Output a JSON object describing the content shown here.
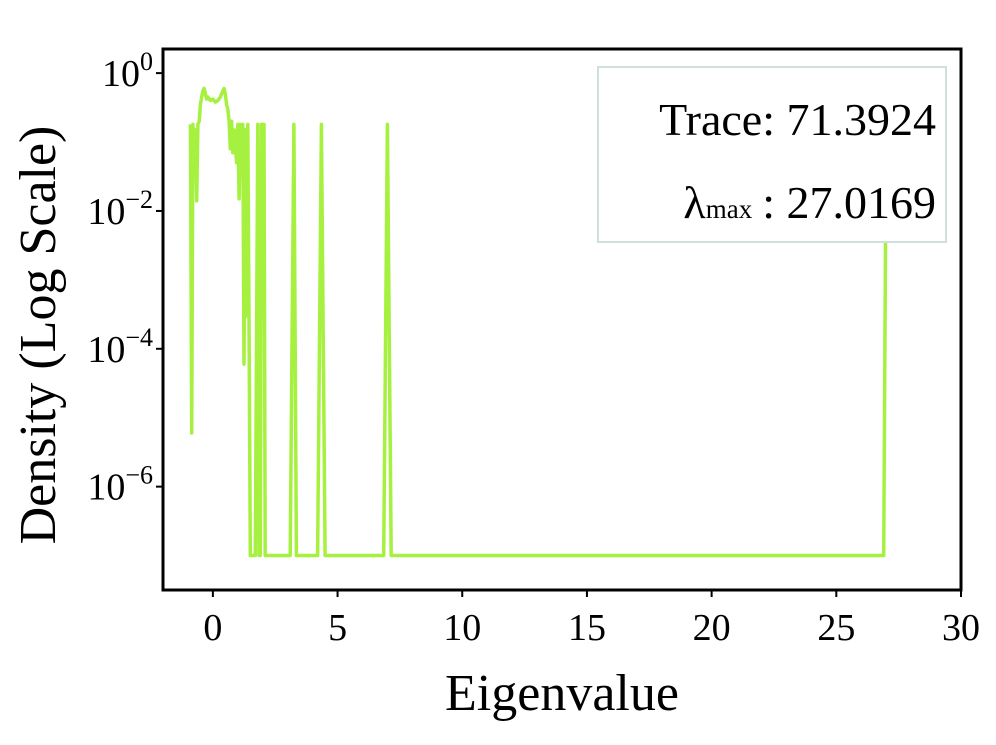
{
  "chart_data": {
    "type": "line",
    "title": "",
    "xlabel": "Eigenvalue",
    "ylabel": "Density (Log Scale)",
    "xlim": [
      -2,
      30
    ],
    "ylim_log10": [
      -7.5,
      0.35
    ],
    "y_scale": "log",
    "grid": false,
    "color": "#a6f03f",
    "x_ticks": [
      0,
      5,
      10,
      15,
      20,
      25,
      30
    ],
    "x_tick_labels": [
      "0",
      "5",
      "10",
      "15",
      "20",
      "25",
      "30"
    ],
    "y_ticks_log10": [
      0,
      -2,
      -4,
      -6
    ],
    "y_tick_labels": [
      {
        "base": "10",
        "exp": "0"
      },
      {
        "base": "10",
        "exp": "−2"
      },
      {
        "base": "10",
        "exp": "−4"
      },
      {
        "base": "10",
        "exp": "−6"
      }
    ],
    "annotation": {
      "trace_label": "Trace",
      "trace_value": "71.3924",
      "lambda_symbol": "λ",
      "lambda_sub": "max",
      "lambda_value": "27.0169",
      "placement": "top-right"
    },
    "series": [
      {
        "points": [
          [
            -0.9,
            0.18
          ],
          [
            -0.85,
            6e-06
          ],
          [
            -0.8,
            0.18
          ],
          [
            -0.75,
            0.04
          ],
          [
            -0.7,
            0.15
          ],
          [
            -0.65,
            0.014
          ],
          [
            -0.6,
            0.18
          ],
          [
            -0.55,
            0.2
          ],
          [
            -0.5,
            0.35
          ],
          [
            -0.45,
            0.45
          ],
          [
            -0.4,
            0.55
          ],
          [
            -0.35,
            0.6
          ],
          [
            -0.3,
            0.5
          ],
          [
            -0.25,
            0.42
          ],
          [
            -0.2,
            0.45
          ],
          [
            -0.1,
            0.4
          ],
          [
            0.0,
            0.42
          ],
          [
            0.1,
            0.38
          ],
          [
            0.2,
            0.4
          ],
          [
            0.3,
            0.45
          ],
          [
            0.4,
            0.55
          ],
          [
            0.45,
            0.6
          ],
          [
            0.5,
            0.5
          ],
          [
            0.55,
            0.35
          ],
          [
            0.6,
            0.3
          ],
          [
            0.65,
            0.2
          ],
          [
            0.7,
            0.08
          ],
          [
            0.75,
            0.2
          ],
          [
            0.8,
            0.07
          ],
          [
            0.85,
            0.15
          ],
          [
            0.9,
            0.09
          ],
          [
            0.95,
            0.05
          ],
          [
            1.0,
            0.18
          ],
          [
            1.05,
            0.015
          ],
          [
            1.1,
            0.18
          ],
          [
            1.15,
            0.1
          ],
          [
            1.2,
            0.18
          ],
          [
            1.25,
            6e-05
          ],
          [
            1.3,
            0.15
          ],
          [
            1.35,
            0.0003
          ],
          [
            1.4,
            0.18
          ],
          [
            1.45,
            0.0003
          ],
          [
            1.5,
            1e-07
          ],
          [
            1.6,
            1e-07
          ],
          [
            1.7,
            1e-07
          ],
          [
            1.8,
            0.18
          ],
          [
            1.85,
            1e-07
          ],
          [
            1.9,
            1e-07
          ],
          [
            1.95,
            0.18
          ],
          [
            2.05,
            0.18
          ],
          [
            2.1,
            1e-07
          ],
          [
            2.3,
            1e-07
          ],
          [
            3.1,
            1e-07
          ],
          [
            3.25,
            0.18
          ],
          [
            3.35,
            1e-07
          ],
          [
            4.2,
            1e-07
          ],
          [
            4.35,
            0.18
          ],
          [
            4.5,
            1e-07
          ],
          [
            6.85,
            1e-07
          ],
          [
            7.0,
            0.18
          ],
          [
            7.15,
            1e-07
          ],
          [
            26.9,
            1e-07
          ],
          [
            27.0,
            0.18
          ]
        ]
      }
    ]
  }
}
